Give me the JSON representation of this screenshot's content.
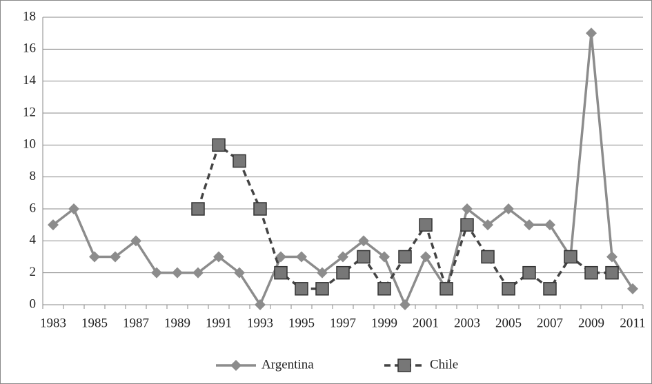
{
  "chart_data": {
    "type": "line",
    "categories": [
      "1983",
      null,
      "1985",
      null,
      "1987",
      null,
      "1989",
      null,
      "1991",
      null,
      "1993",
      null,
      "1995",
      null,
      "1997",
      null,
      "1999",
      null,
      "2001",
      null,
      "2003",
      null,
      "2005",
      null,
      "2007",
      null,
      "2009",
      null,
      "2011"
    ],
    "series": [
      {
        "name": "Argentina",
        "color": "#8c8c8c",
        "marker": "diamond",
        "dashed": false,
        "values": [
          5,
          6,
          3,
          3,
          4,
          2,
          2,
          2,
          3,
          2,
          0,
          3,
          3,
          2,
          3,
          4,
          3,
          0,
          3,
          1,
          6,
          5,
          6,
          5,
          5,
          3,
          17,
          3,
          1
        ]
      },
      {
        "name": "Chile",
        "color": "#444444",
        "marker": "square",
        "dashed": true,
        "values": [
          null,
          null,
          null,
          null,
          null,
          null,
          null,
          6,
          10,
          9,
          6,
          2,
          1,
          1,
          2,
          3,
          1,
          3,
          5,
          1,
          5,
          3,
          1,
          2,
          1,
          3,
          2,
          2,
          null
        ]
      }
    ],
    "ylim": [
      0,
      18
    ],
    "yticks": [
      0,
      2,
      4,
      6,
      8,
      10,
      12,
      14,
      16,
      18
    ],
    "grid": true,
    "legend": "bottom"
  }
}
